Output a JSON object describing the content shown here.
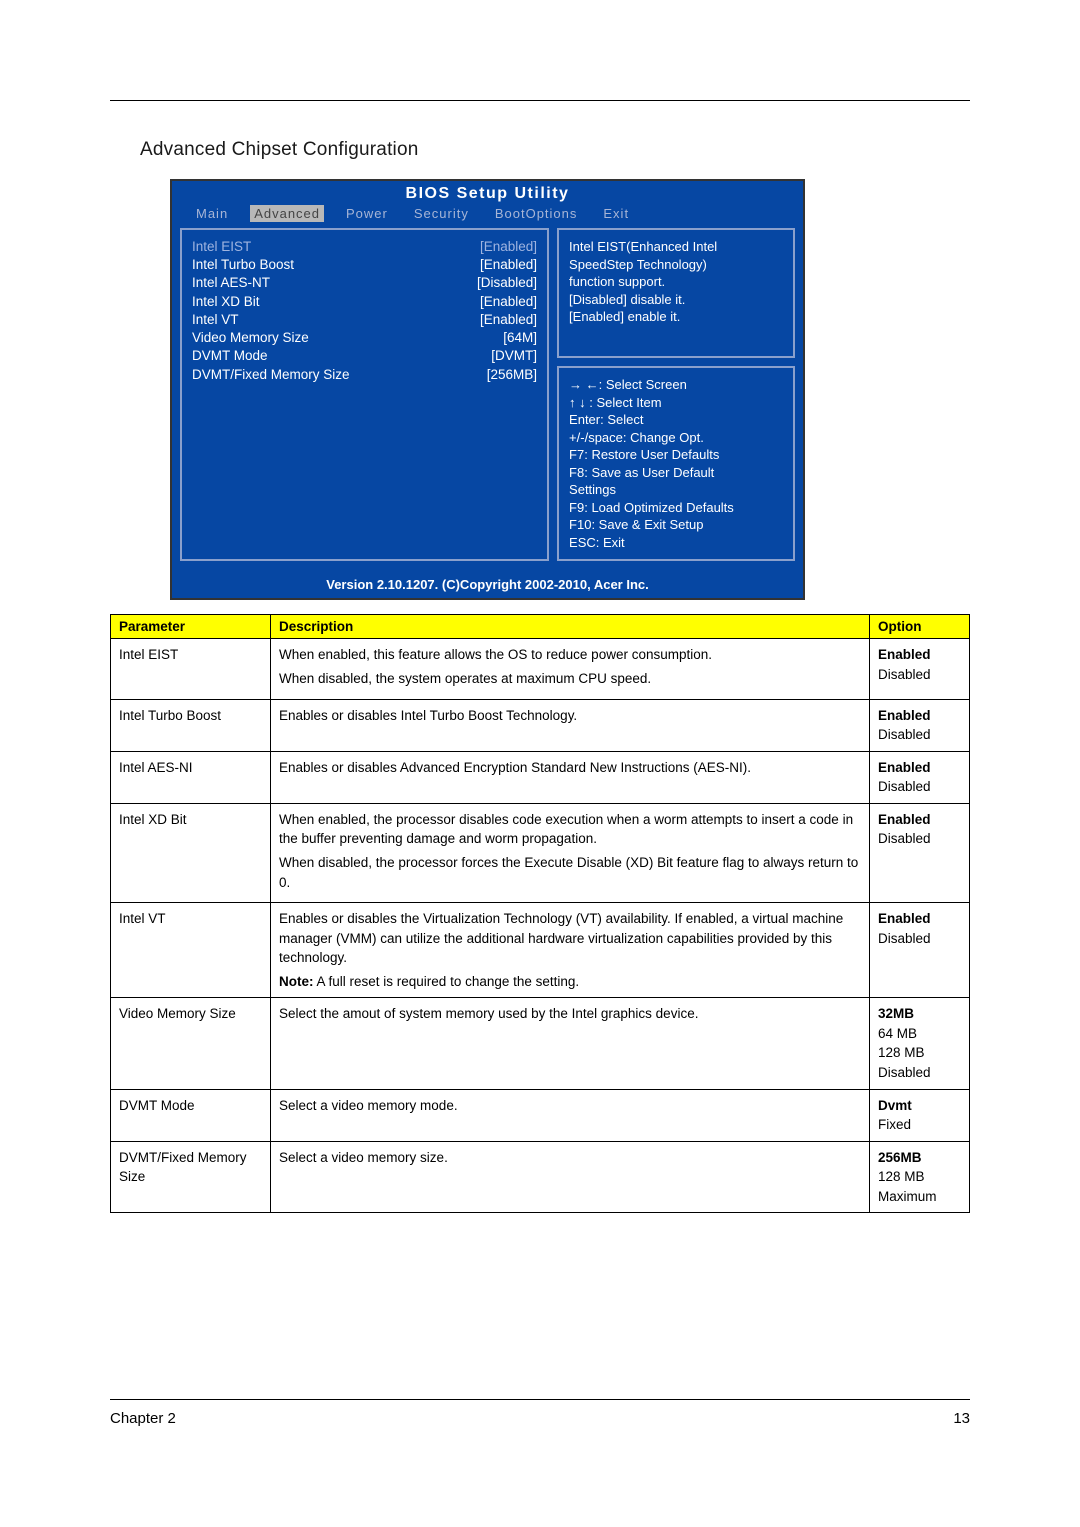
{
  "section_title": "Advanced Chipset Configuration",
  "bios": {
    "title": "BIOS  Setup  Utility",
    "tabs": [
      "Main",
      "Advanced",
      "Power",
      "Security",
      "BootOptions",
      "Exit"
    ],
    "active_tab_index": 1,
    "settings": [
      {
        "label": "Intel  EIST",
        "value": "[Enabled]",
        "selected": true
      },
      {
        "label": "Intel  Turbo  Boost",
        "value": "[Enabled]"
      },
      {
        "label": "Intel  AES-NT",
        "value": "[Disabled]"
      },
      {
        "label": "Intel  XD  Bit",
        "value": "[Enabled]"
      },
      {
        "label": "Intel  VT",
        "value": "[Enabled]"
      },
      {
        "label": "Video  Memory  Size",
        "value": "[64M]"
      },
      {
        "label": "DVMT  Mode",
        "value": "[DVMT]"
      },
      {
        "label": "DVMT/Fixed  Memory  Size",
        "value": "[256MB]"
      }
    ],
    "help_lines": [
      "Intel  EIST(Enhanced  Intel",
      "SpeedStep  Technology)",
      "function  support.",
      "[Disabled]  disable  it.",
      "[Enabled]  enable  it."
    ],
    "key_lines": [
      "→ ←:  Select  Screen",
      "↑  ↓ :  Select  Item",
      "Enter:  Select",
      "+/-/space:  Change  Opt.",
      "F7:  Restore  User  Defaults",
      "F8:  Save  as  User  Default",
      "Settings",
      "F9:  Load  Optimized  Defaults",
      "F10:  Save  &  Exit  Setup",
      "ESC:  Exit"
    ],
    "footer": "Version  2.10.1207.   (C)Copyright  2002-2010,  Acer  Inc."
  },
  "table": {
    "headers": {
      "parameter": "Parameter",
      "description": "Description",
      "option": "Option"
    },
    "rows": [
      {
        "param": "Intel EIST",
        "desc_lines": [
          "When enabled, this feature allows the OS to reduce power consumption.",
          "When disabled, the system operates at maximum CPU speed."
        ],
        "options": [
          {
            "text": "Enabled",
            "bold": true
          },
          {
            "text": "Disabled"
          }
        ]
      },
      {
        "param": "Intel Turbo Boost",
        "desc_lines": [
          "Enables or disables Intel Turbo Boost Technology."
        ],
        "options": [
          {
            "text": "Enabled",
            "bold": true
          },
          {
            "text": "Disabled"
          }
        ]
      },
      {
        "param": "Intel AES-NI",
        "desc_lines": [
          "Enables or disables Advanced Encryption Standard New Instructions (AES-NI)."
        ],
        "options": [
          {
            "text": "Enabled",
            "bold": true
          },
          {
            "text": "Disabled"
          }
        ]
      },
      {
        "param": "Intel XD Bit",
        "desc_lines": [
          "When enabled, the processor disables code execution when a worm attempts to insert a code in the buffer preventing damage and worm propagation.",
          "When disabled, the processor forces the Execute Disable (XD) Bit feature flag to always return to 0."
        ],
        "options": [
          {
            "text": "Enabled",
            "bold": true
          },
          {
            "text": "Disabled"
          }
        ]
      },
      {
        "param": "Intel VT",
        "desc_lines": [
          "Enables or disables the Virtualization Technology (VT) availability. If enabled, a virtual machine manager (VMM) can utilize the additional hardware virtualization capabilities provided by this technology."
        ],
        "note_prefix": "Note:",
        "note_text": " A full reset is required to change the setting.",
        "options": [
          {
            "text": "Enabled",
            "bold": true
          },
          {
            "text": "Disabled"
          }
        ]
      },
      {
        "param": "Video Memory Size",
        "desc_lines": [
          "Select the amout of system memory used by the Intel graphics device."
        ],
        "options": [
          {
            "text": "32MB",
            "bold": true
          },
          {
            "text": "64 MB"
          },
          {
            "text": "128 MB"
          },
          {
            "text": "Disabled"
          }
        ]
      },
      {
        "param": "DVMT Mode",
        "desc_lines": [
          "Select a video memory mode."
        ],
        "options": [
          {
            "text": "Dvmt",
            "bold": true
          },
          {
            "text": "Fixed"
          }
        ]
      },
      {
        "param": "DVMT/Fixed Memory Size",
        "desc_lines": [
          "Select a video memory size."
        ],
        "options": [
          {
            "text": "256MB",
            "bold": true
          },
          {
            "text": "128 MB"
          },
          {
            "text": "Maximum"
          }
        ]
      }
    ]
  },
  "footer": {
    "chapter": "Chapter 2",
    "page_number": "13"
  }
}
